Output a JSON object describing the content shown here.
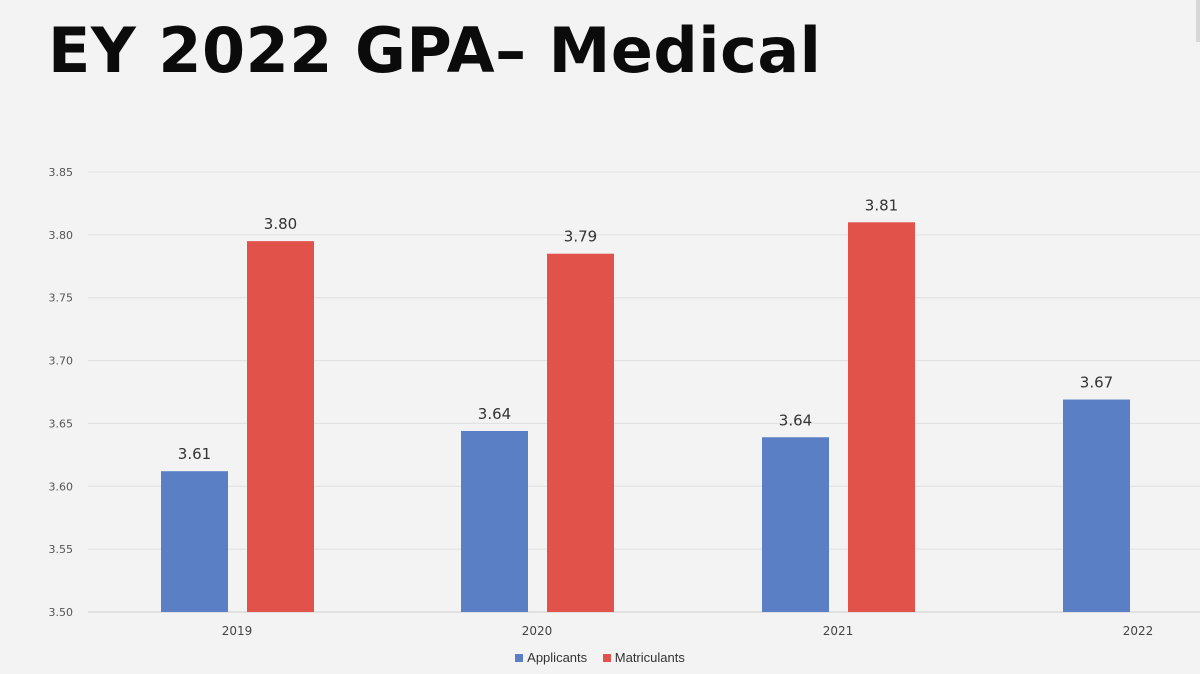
{
  "title": "EY 2022 GPA– Medical",
  "chart_data": {
    "type": "bar",
    "title": "",
    "xlabel": "",
    "ylabel": "",
    "categories": [
      "2019",
      "2020",
      "2021",
      "2022"
    ],
    "ylim": [
      3.5,
      3.85
    ],
    "yticks": [
      "3.50",
      "3.55",
      "3.60",
      "3.65",
      "3.70",
      "3.75",
      "3.80",
      "3.85"
    ],
    "grid": true,
    "legend_position": "bottom",
    "series": [
      {
        "name": "Applicants",
        "color": "#5a7fc4",
        "values": [
          3.612,
          3.644,
          3.639,
          3.669
        ],
        "labels": [
          "3.61",
          "3.64",
          "3.64",
          "3.67"
        ]
      },
      {
        "name": "Matriculants",
        "color": "#e0524a",
        "values": [
          3.795,
          3.785,
          3.81,
          null
        ],
        "labels": [
          "3.80",
          "3.79",
          "3.81",
          ""
        ]
      }
    ]
  }
}
